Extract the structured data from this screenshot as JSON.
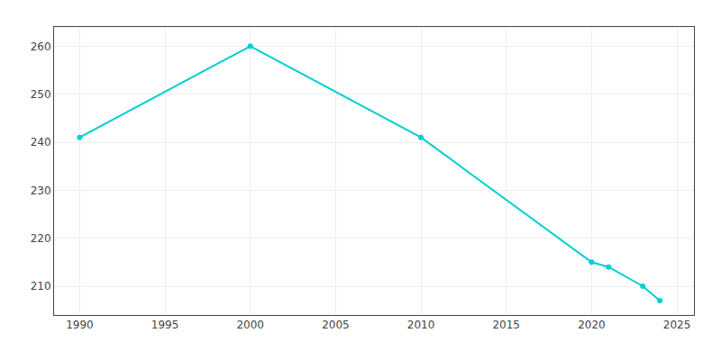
{
  "chart_data": {
    "type": "line",
    "x": [
      1990,
      2000,
      2010,
      2020,
      2021,
      2023,
      2024
    ],
    "values": [
      241,
      260,
      241,
      215,
      214,
      210,
      207
    ],
    "color": "#00CED1",
    "marker": "circle",
    "xlim": [
      1988.5,
      2026
    ],
    "ylim": [
      204,
      264
    ],
    "xticks": [
      1990,
      1995,
      2000,
      2005,
      2010,
      2015,
      2020,
      2025
    ],
    "yticks": [
      210,
      220,
      230,
      240,
      250,
      260
    ],
    "grid": true
  }
}
